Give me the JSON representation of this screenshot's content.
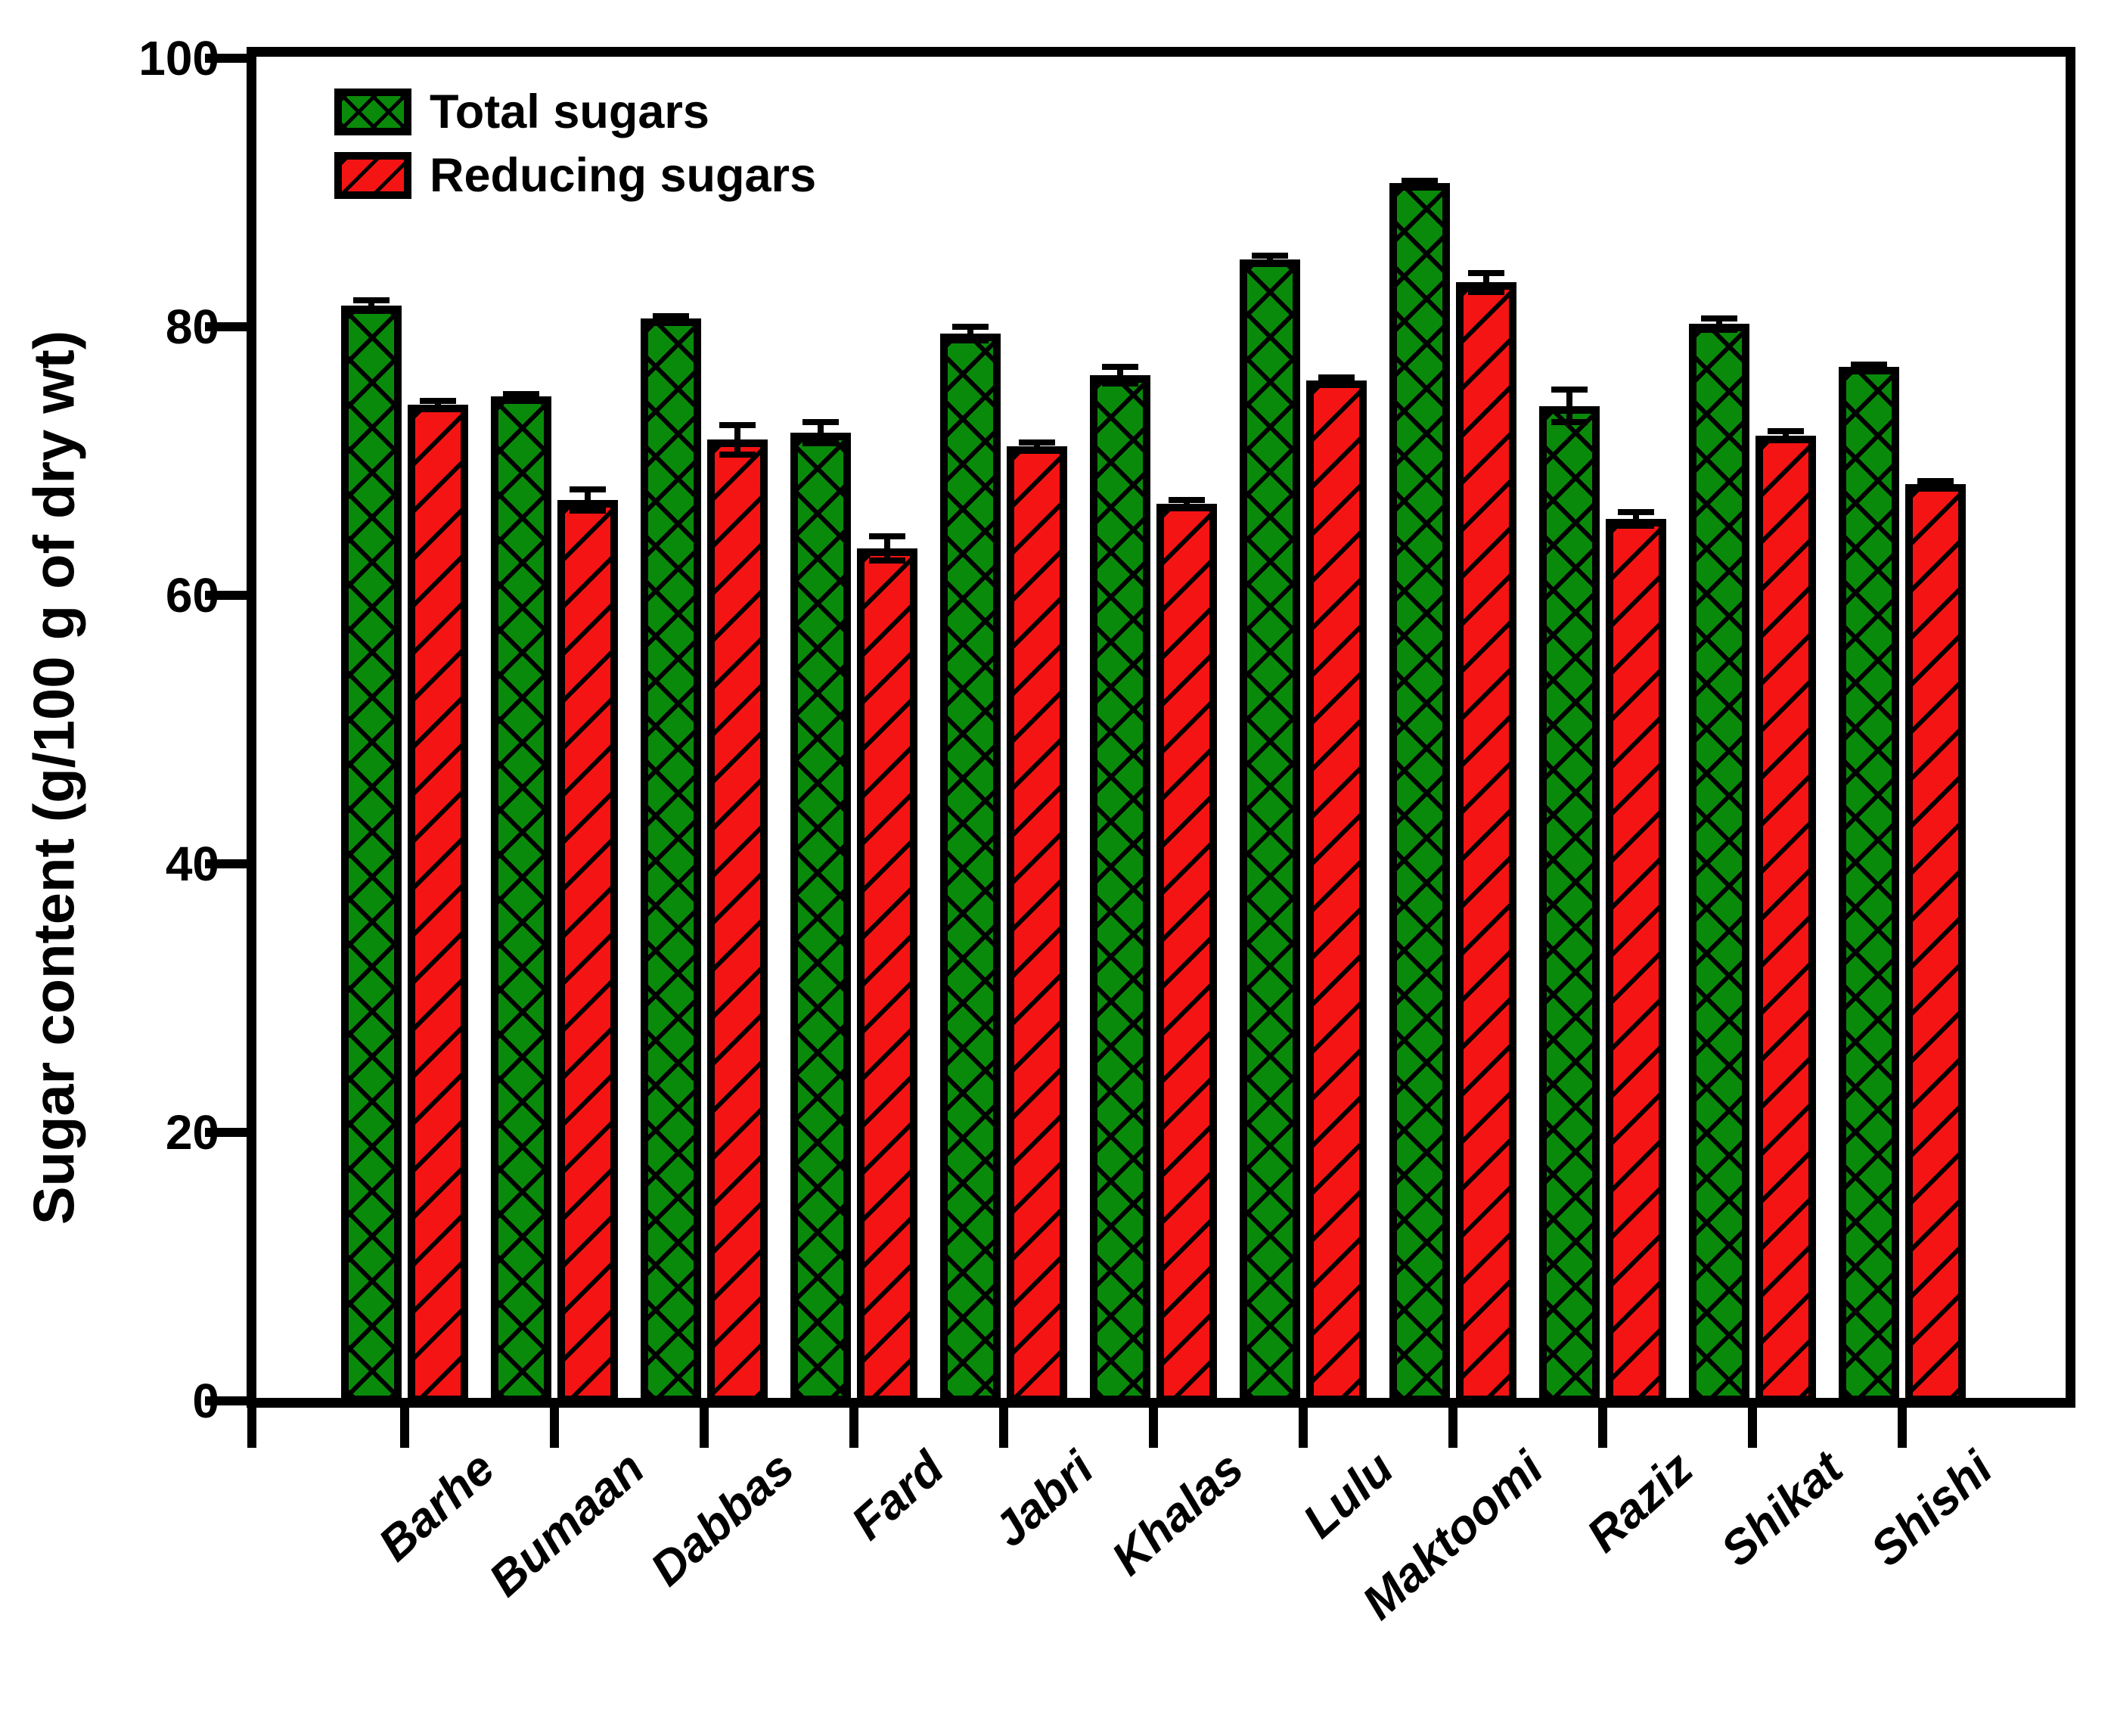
{
  "figure": {
    "background": "#ffffff",
    "axis_color": "#000000",
    "text_color": "#000000"
  },
  "chart_data": {
    "type": "bar",
    "title": "",
    "xlabel": "",
    "ylabel": "Sugar content (g/100 g of dry wt)",
    "ylim": [
      0,
      100
    ],
    "yticks": [
      0,
      20,
      40,
      60,
      80,
      100
    ],
    "grid": false,
    "legend_position": "top-left-inside",
    "error_bars": true,
    "categories": [
      "Barhe",
      "Bumaan",
      "Dabbas",
      "Fard",
      "Jabri",
      "Khalas",
      "Lulu",
      "Maktoomi",
      "Raziz",
      "Shikat",
      "Shishi"
    ],
    "series": [
      {
        "name": "Total sugars",
        "color": "#0a8a0a",
        "hatch": "crosshatch",
        "values": [
          81.6,
          74.8,
          80.6,
          72.1,
          79.5,
          76.4,
          85.0,
          90.7,
          74.1,
          80.2,
          77.0
        ],
        "errors": [
          0.4,
          0.2,
          0.2,
          0.8,
          0.5,
          0.6,
          0.3,
          0.2,
          1.2,
          0.4,
          0.2
        ]
      },
      {
        "name": "Reducing sugars",
        "color": "#f51414",
        "hatch": "diagonal",
        "values": [
          74.2,
          67.1,
          71.6,
          63.5,
          71.1,
          66.8,
          76.0,
          83.3,
          65.7,
          71.9,
          68.3
        ],
        "errors": [
          0.3,
          0.8,
          1.1,
          0.9,
          0.3,
          0.3,
          0.2,
          0.7,
          0.5,
          0.3,
          0.2
        ]
      }
    ]
  }
}
